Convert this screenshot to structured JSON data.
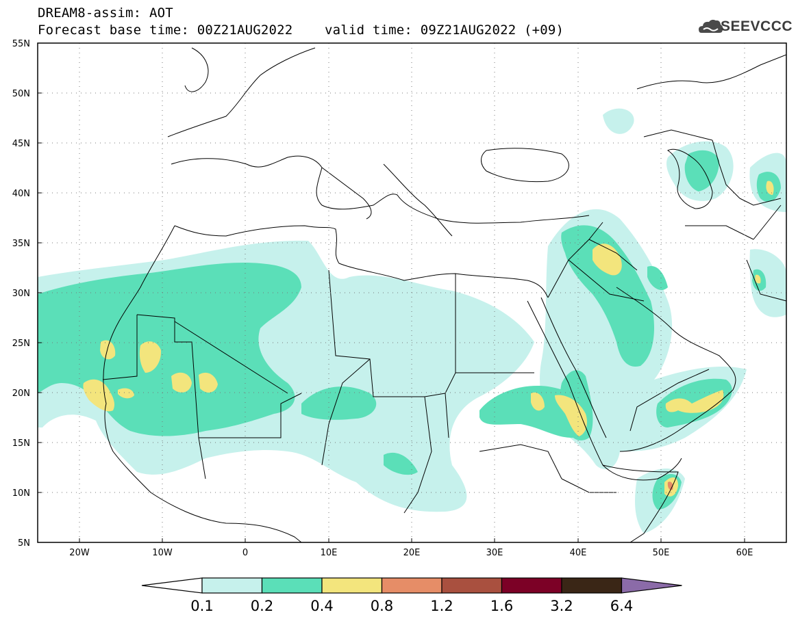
{
  "header": {
    "model_line": "DREAM8-assim: AOT",
    "forecast_base_label": "Forecast base time:",
    "forecast_base_value": "00Z21AUG2022",
    "valid_label": "valid time:",
    "valid_value": "09Z21AUG2022 (+09)"
  },
  "logo": {
    "text": "SEEVCCC",
    "icon": "cloud-icon"
  },
  "map": {
    "type": "filled-contour-map",
    "variable": "AOT",
    "lon_range": [
      -25,
      65
    ],
    "lat_range": [
      5,
      55
    ],
    "grid": "dotted",
    "lat_ticks": [
      "55N",
      "50N",
      "45N",
      "40N",
      "35N",
      "30N",
      "25N",
      "20N",
      "15N",
      "10N",
      "5N"
    ],
    "lon_ticks": [
      "20W",
      "10W",
      "0",
      "10E",
      "20E",
      "30E",
      "40E",
      "50E",
      "60E"
    ]
  },
  "colorbar": {
    "labels": [
      "0.1",
      "0.2",
      "0.4",
      "0.8",
      "1.2",
      "1.6",
      "3.2",
      "6.4"
    ],
    "colors": [
      "#ffffff",
      "#c6f1ec",
      "#5bdfb8",
      "#f3e57d",
      "#e68d67",
      "#a9503f",
      "#7c0126",
      "#3a2616",
      "#8b6ba8"
    ]
  }
}
